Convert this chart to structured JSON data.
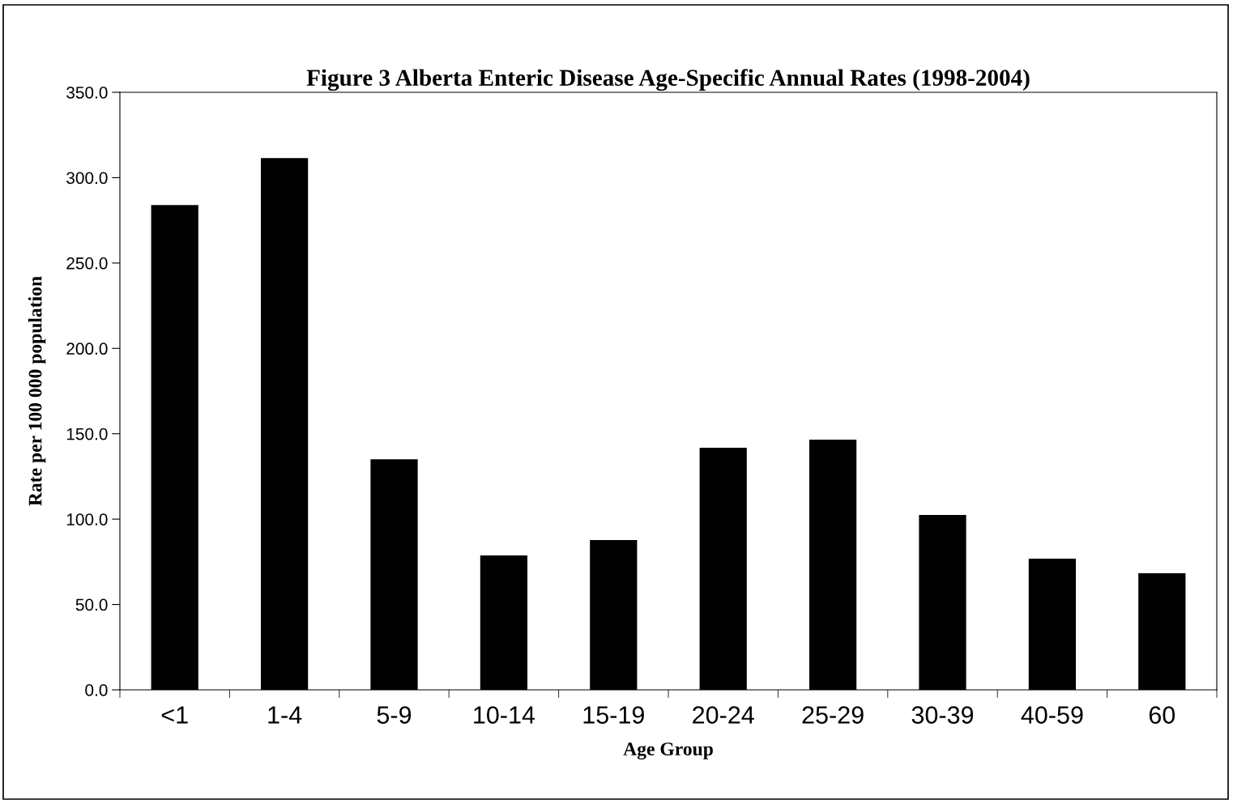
{
  "chart_data": {
    "type": "bar",
    "title": "Figure 3 Alberta Enteric Disease Age-Specific Annual Rates (1998-2004)",
    "xlabel": "Age Group",
    "ylabel": "Rate per 100 000 population",
    "categories": [
      "<1",
      "1-4",
      "5-9",
      "10-14",
      "15-19",
      "20-24",
      "25-29",
      "30-39",
      "40-59",
      "60"
    ],
    "values": [
      284.0,
      311.5,
      135.1,
      78.7,
      87.7,
      141.8,
      146.5,
      102.4,
      76.8,
      68.3
    ],
    "color": "#000000",
    "ylim": [
      0,
      350
    ],
    "yticks": [
      {
        "value": 0,
        "label": "0.0"
      },
      {
        "value": 50,
        "label": "50.0"
      },
      {
        "value": 100,
        "label": "100.0"
      },
      {
        "value": 150,
        "label": "150.0"
      },
      {
        "value": 200,
        "label": "200.0"
      },
      {
        "value": 250,
        "label": "250.0"
      },
      {
        "value": 300,
        "label": "300.0"
      },
      {
        "value": 350,
        "label": "350.0"
      }
    ],
    "grid": false
  }
}
